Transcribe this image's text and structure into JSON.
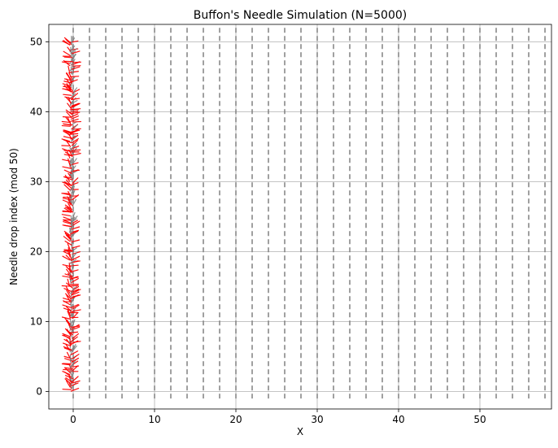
{
  "chart_data": {
    "type": "line",
    "title": "Buffon's Needle Simulation (N=5000)",
    "xlabel": "X",
    "ylabel": "Needle drop index (mod 50)",
    "xlim": [
      -3,
      58.8
    ],
    "ylim": [
      -2.5,
      52.5
    ],
    "x_ticks": [
      0,
      10,
      20,
      30,
      40,
      50
    ],
    "y_ticks": [
      0,
      10,
      20,
      30,
      40,
      50
    ],
    "grid": true,
    "reference_lines": {
      "orientation": "vertical",
      "style": "dashed",
      "x": [
        0,
        2,
        4,
        6,
        8,
        10,
        12,
        14,
        16,
        18,
        20,
        22,
        24,
        26,
        28,
        30,
        32,
        34,
        36,
        38,
        40,
        42,
        44,
        46,
        48,
        50,
        52,
        54,
        56,
        58
      ]
    },
    "needle_length": 1,
    "needle_indices": [
      0,
      50
    ],
    "series": [
      {
        "color": "#ff0000"
      },
      {
        "color": "#808080"
      }
    ]
  },
  "colors": {
    "background": "#ffffff",
    "axes": "#000000",
    "grid": "#b0b0b0",
    "reference_line": "#808080",
    "crossing_needle": "#ff0000",
    "non_crossing_needle": "#808080"
  }
}
